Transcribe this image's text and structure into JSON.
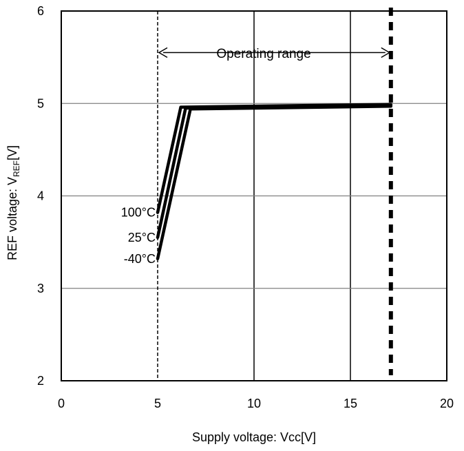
{
  "chart_data": {
    "type": "line",
    "title": "",
    "xlabel": "Supply voltage: Vcc[V]",
    "ylabel": "REF voltage: V",
    "ylabel_subscript": "REF",
    "ylabel_suffix": "[V]",
    "xlim": [
      0,
      20
    ],
    "ylim": [
      2,
      6
    ],
    "x_ticks": [
      "0",
      "5",
      "10",
      "15",
      "20"
    ],
    "y_ticks": [
      "2",
      "3",
      "4",
      "5",
      "6"
    ],
    "grid": true,
    "legend": "none",
    "series": [
      {
        "name": "100°C",
        "x": [
          5.0,
          6.2,
          17.1
        ],
        "y": [
          3.82,
          4.96,
          4.99
        ]
      },
      {
        "name": "25°C",
        "x": [
          5.0,
          6.45,
          17.1
        ],
        "y": [
          3.55,
          4.95,
          4.98
        ]
      },
      {
        "name": "-40°C",
        "x": [
          5.0,
          6.7,
          17.1
        ],
        "y": [
          3.32,
          4.94,
          4.97
        ]
      }
    ],
    "annotations": {
      "operating_range_label": "Operating range",
      "operating_range_x": [
        5.0,
        17.1
      ],
      "operating_range_arrow_y": 5.55,
      "min_vcc_dashed_line_x": 5.0,
      "max_vcc_dashed_line_x": 17.1
    }
  }
}
